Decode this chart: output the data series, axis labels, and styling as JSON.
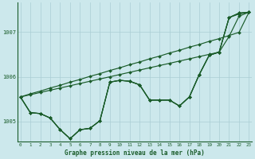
{
  "title": "Graphe pression niveau de la mer (hPa)",
  "bg_color": "#cce8ec",
  "grid_color": "#aacdd4",
  "line_color": "#1a5c2a",
  "x_ticks": [
    0,
    1,
    2,
    3,
    4,
    5,
    6,
    7,
    8,
    9,
    10,
    11,
    12,
    13,
    14,
    15,
    16,
    17,
    18,
    19,
    20,
    21,
    22,
    23
  ],
  "y_ticks": [
    1005,
    1006,
    1007
  ],
  "ylim": [
    1004.55,
    1007.65
  ],
  "xlim": [
    -0.3,
    23.3
  ],
  "s1": [
    1005.55,
    1005.2,
    1005.18,
    1005.08,
    1004.82,
    1004.62,
    1004.82,
    1004.85,
    1005.02,
    1005.88,
    1005.92,
    1005.9,
    1005.82,
    1005.48,
    1005.48,
    1005.48,
    1005.35,
    1005.55,
    1006.05,
    1006.48,
    1006.55,
    1007.32,
    1007.4,
    1007.44
  ],
  "s2": [
    1005.55,
    1005.2,
    1005.18,
    1005.08,
    1004.82,
    1004.62,
    1004.82,
    1004.85,
    1005.02,
    1005.88,
    1005.92,
    1005.9,
    1005.82,
    1005.48,
    1005.48,
    1005.48,
    1005.35,
    1005.55,
    1006.05,
    1006.48,
    1006.55,
    1007.32,
    1007.42,
    1007.44
  ],
  "s3": [
    1005.55,
    1005.2,
    1005.18,
    1005.08,
    1004.82,
    1004.62,
    1004.82,
    1004.85,
    1005.02,
    1005.88,
    1005.92,
    1005.9,
    1005.82,
    1005.48,
    1005.48,
    1005.48,
    1005.35,
    1005.55,
    1006.05,
    1006.48,
    1006.55,
    1007.32,
    1007.42,
    1007.44
  ],
  "trend1": [
    1005.55,
    1005.62,
    1005.68,
    1005.75,
    1005.81,
    1005.88,
    1005.94,
    1006.01,
    1006.07,
    1006.14,
    1006.2,
    1006.27,
    1006.33,
    1006.4,
    1006.46,
    1006.53,
    1006.59,
    1006.66,
    1006.72,
    1006.79,
    1006.85,
    1006.92,
    1006.99,
    1007.44
  ],
  "trend2": [
    1005.55,
    1005.6,
    1005.65,
    1005.7,
    1005.75,
    1005.8,
    1005.85,
    1005.9,
    1005.95,
    1006.0,
    1006.05,
    1006.1,
    1006.15,
    1006.2,
    1006.25,
    1006.3,
    1006.35,
    1006.4,
    1006.45,
    1006.5,
    1006.55,
    1006.9,
    1007.35,
    1007.44
  ]
}
